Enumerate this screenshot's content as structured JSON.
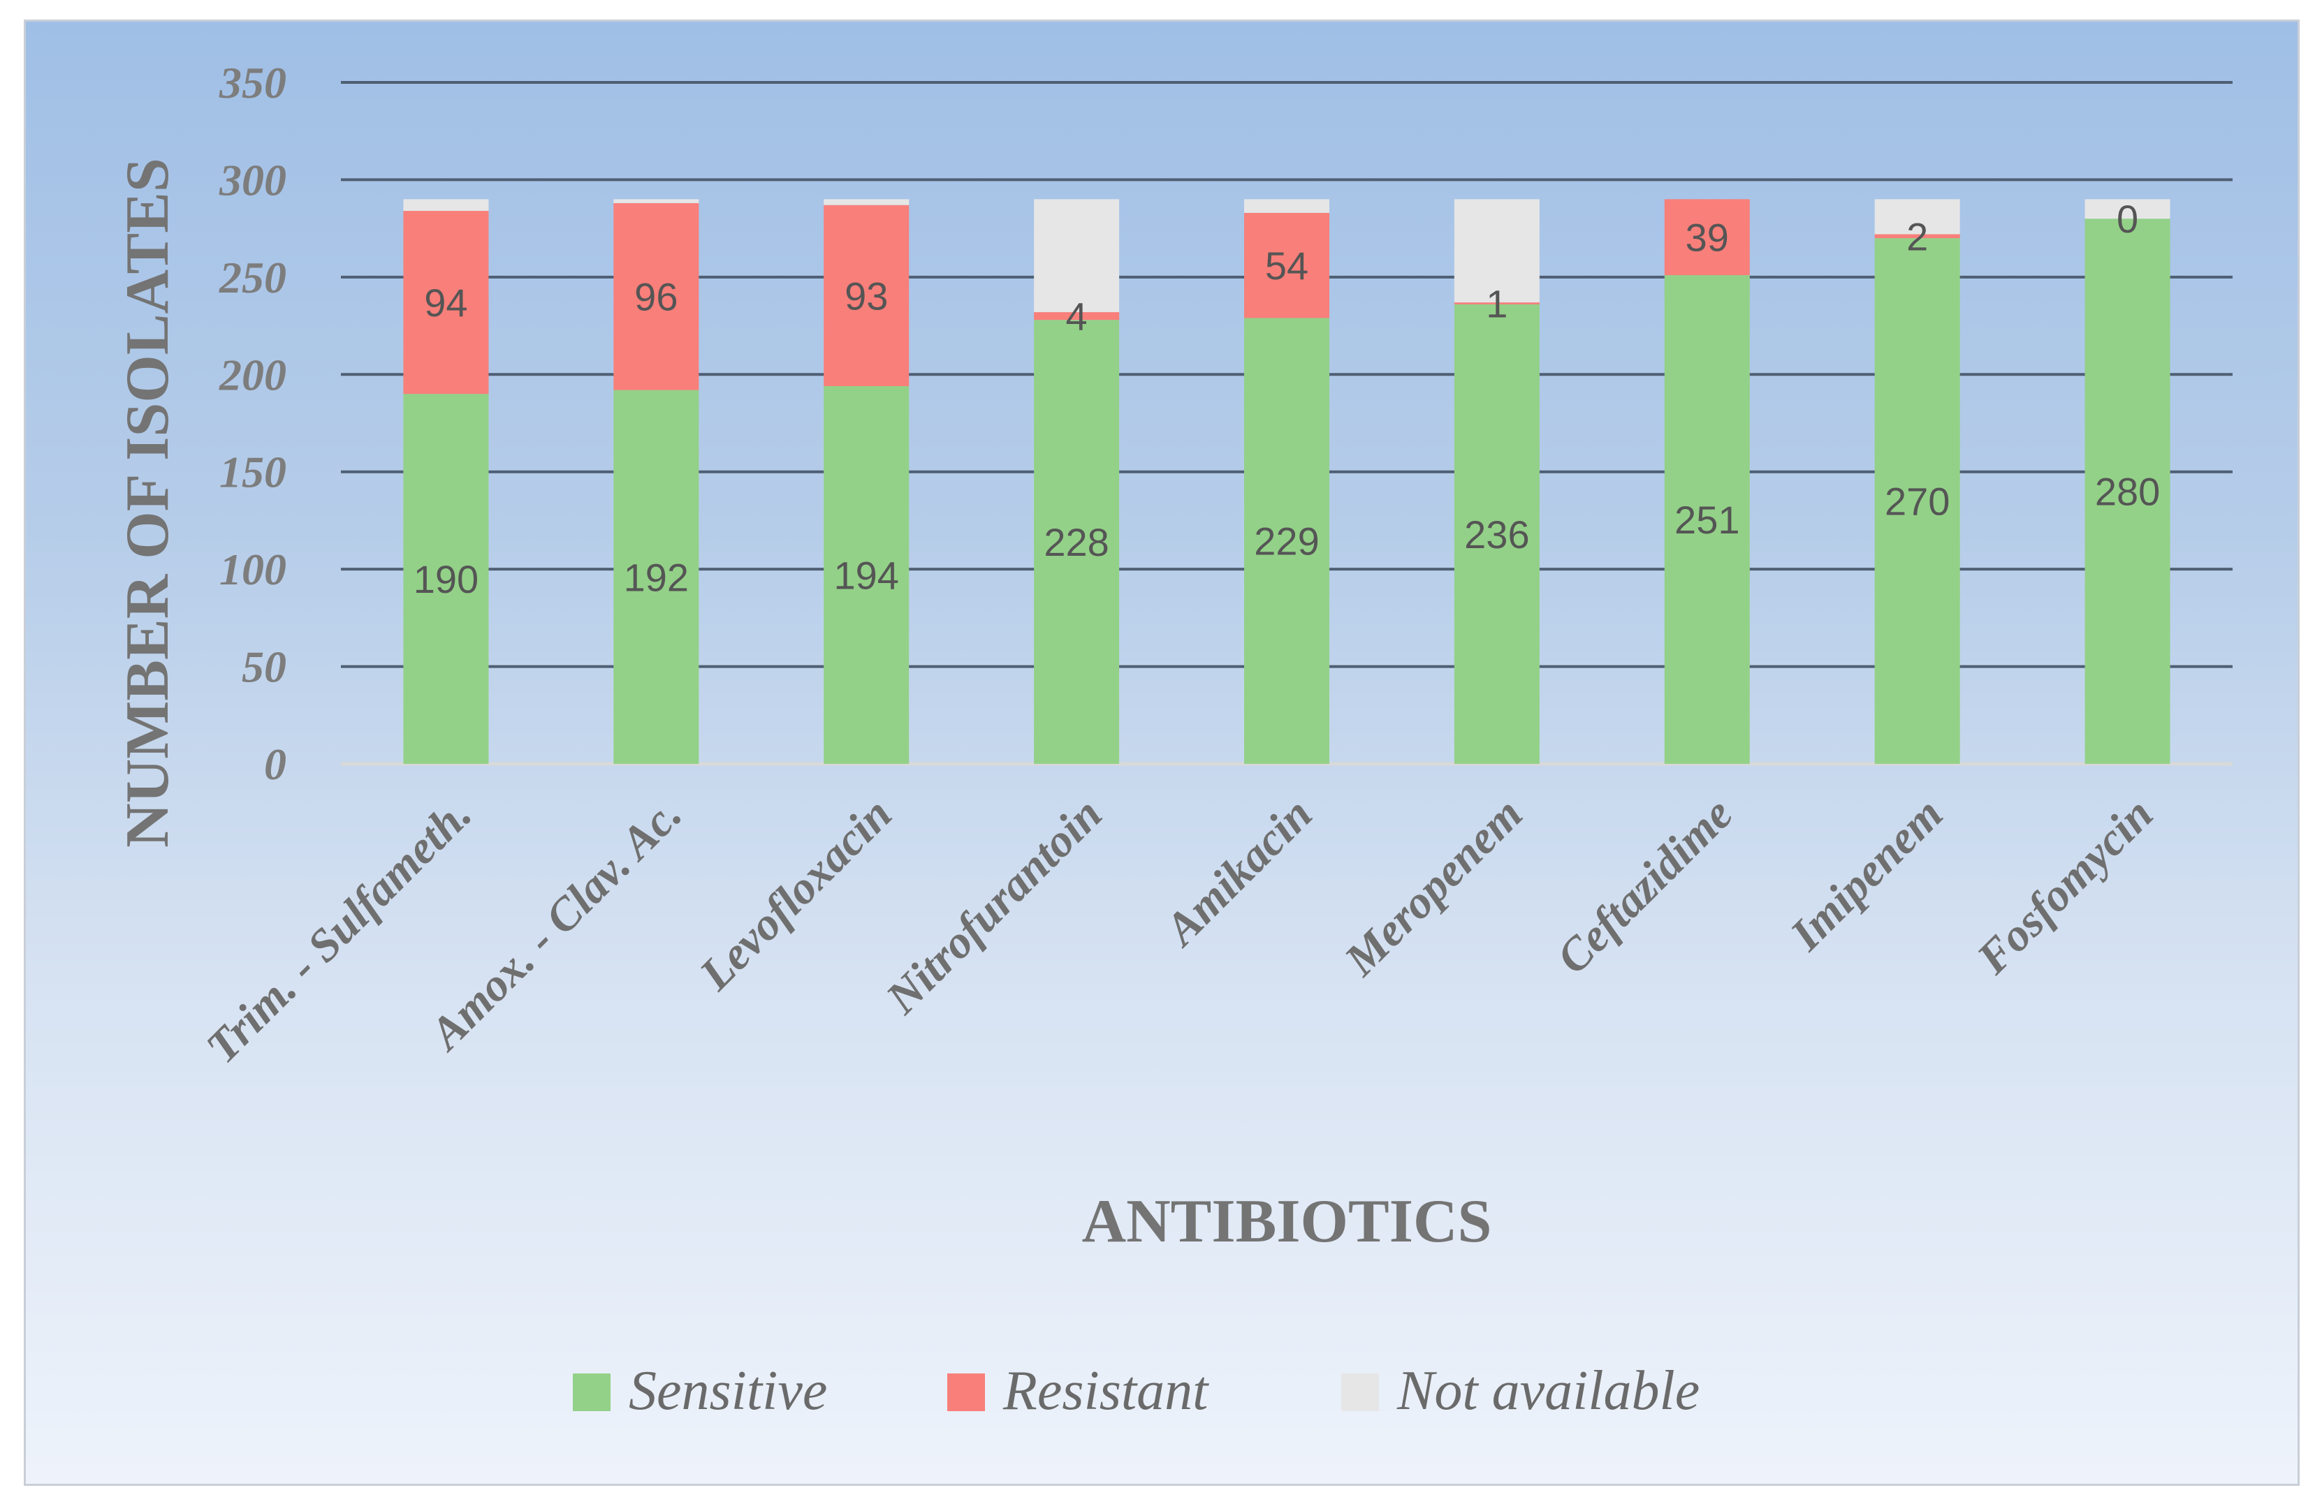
{
  "chart_data": {
    "type": "bar",
    "stacked": true,
    "title": "",
    "xlabel": "ANTIBIOTICS",
    "ylabel": "NUMBER OF ISOLATES",
    "ylim": [
      0,
      350
    ],
    "yticks": [
      0,
      50,
      100,
      150,
      200,
      250,
      300,
      350
    ],
    "grid": true,
    "legend_position": "bottom",
    "categories": [
      "Trim. - Sulfameth.",
      "Amox. - Clav. Ac.",
      "Levofloxacin",
      "Nitrofurantoin",
      "Amikacin",
      "Meropenem",
      "Ceftazidime",
      "Imipenem",
      "Fosfomycin"
    ],
    "series": [
      {
        "name": "Sensitive",
        "color": "#93d188",
        "values": [
          190,
          192,
          194,
          228,
          229,
          236,
          251,
          270,
          280
        ]
      },
      {
        "name": "Resistant",
        "color": "#f87f7a",
        "values": [
          94,
          96,
          93,
          4,
          54,
          1,
          39,
          2,
          0
        ]
      },
      {
        "name": "Not available",
        "color": "#e6e6e6",
        "values": [
          6,
          2,
          3,
          58,
          7,
          53,
          0,
          18,
          10
        ]
      }
    ],
    "labeled_series": [
      "Sensitive",
      "Resistant"
    ]
  }
}
